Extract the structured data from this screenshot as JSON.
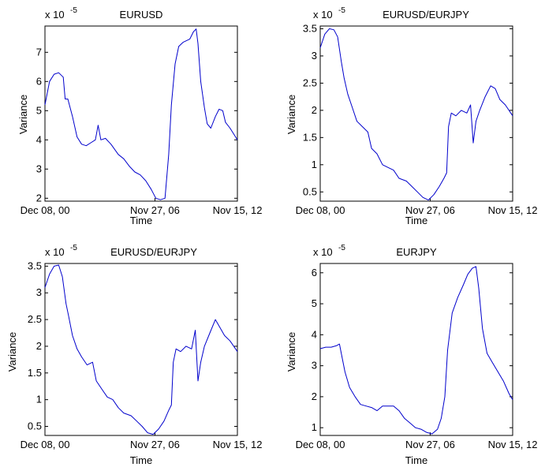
{
  "chart_data": [
    {
      "type": "line",
      "title": "EURUSD",
      "ylabel": "Variance",
      "xlabel": "Time",
      "exponent_label": "x 10",
      "exponent_power": "-5",
      "x_tick_labels": [
        "Dec 08, 00",
        "Nov 27, 06",
        "Nov 15, 12"
      ],
      "x": [
        0,
        6,
        12
      ],
      "ylim": [
        1.9,
        7.9
      ],
      "yticks": [
        2,
        3,
        4,
        5,
        6,
        7
      ],
      "series": [
        {
          "color": "#0000cc",
          "points": [
            [
              0.0,
              5.2
            ],
            [
              0.25,
              6.0
            ],
            [
              0.5,
              6.25
            ],
            [
              0.75,
              6.3
            ],
            [
              1.0,
              6.15
            ],
            [
              1.1,
              5.4
            ],
            [
              1.25,
              5.4
            ],
            [
              1.5,
              4.8
            ],
            [
              1.75,
              4.1
            ],
            [
              2.0,
              3.85
            ],
            [
              2.25,
              3.8
            ],
            [
              2.5,
              3.9
            ],
            [
              2.75,
              4.0
            ],
            [
              2.9,
              4.5
            ],
            [
              3.05,
              4.0
            ],
            [
              3.3,
              4.05
            ],
            [
              3.6,
              3.85
            ],
            [
              4.0,
              3.5
            ],
            [
              4.3,
              3.35
            ],
            [
              4.6,
              3.1
            ],
            [
              4.9,
              2.9
            ],
            [
              5.2,
              2.8
            ],
            [
              5.5,
              2.6
            ],
            [
              5.8,
              2.3
            ],
            [
              6.05,
              2.0
            ],
            [
              6.3,
              1.95
            ],
            [
              6.55,
              2.0
            ],
            [
              6.75,
              3.5
            ],
            [
              6.9,
              5.2
            ],
            [
              7.1,
              6.6
            ],
            [
              7.3,
              7.2
            ],
            [
              7.55,
              7.35
            ],
            [
              7.9,
              7.45
            ],
            [
              8.1,
              7.7
            ],
            [
              8.25,
              7.8
            ],
            [
              8.35,
              7.3
            ],
            [
              8.5,
              6.0
            ],
            [
              8.7,
              5.1
            ],
            [
              8.85,
              4.55
            ],
            [
              9.05,
              4.4
            ],
            [
              9.3,
              4.8
            ],
            [
              9.5,
              5.05
            ],
            [
              9.7,
              5.0
            ],
            [
              9.85,
              4.6
            ],
            [
              10.1,
              4.4
            ],
            [
              10.4,
              4.1
            ],
            [
              10.5,
              4.0
            ]
          ]
        }
      ]
    },
    {
      "type": "line",
      "title": "EURUSD/EURJPY",
      "ylabel": "Variance",
      "xlabel": "Time",
      "exponent_label": "x 10",
      "exponent_power": "-5",
      "x_tick_labels": [
        "Dec 08, 00",
        "Nov 27, 06",
        "Nov 15, 12"
      ],
      "x": [
        0,
        6,
        12
      ],
      "ylim": [
        0.33,
        3.55
      ],
      "yticks": [
        0.5,
        1,
        1.5,
        2,
        2.5,
        3,
        3.5
      ],
      "series": [
        {
          "color": "#0000cc",
          "points": [
            [
              0.0,
              3.15
            ],
            [
              0.25,
              3.4
            ],
            [
              0.5,
              3.5
            ],
            [
              0.75,
              3.48
            ],
            [
              0.95,
              3.35
            ],
            [
              1.15,
              2.9
            ],
            [
              1.3,
              2.6
            ],
            [
              1.5,
              2.3
            ],
            [
              1.75,
              2.05
            ],
            [
              2.0,
              1.8
            ],
            [
              2.3,
              1.7
            ],
            [
              2.6,
              1.6
            ],
            [
              2.8,
              1.3
            ],
            [
              3.1,
              1.2
            ],
            [
              3.4,
              1.0
            ],
            [
              3.7,
              0.95
            ],
            [
              4.0,
              0.9
            ],
            [
              4.3,
              0.75
            ],
            [
              4.7,
              0.7
            ],
            [
              5.0,
              0.6
            ],
            [
              5.3,
              0.5
            ],
            [
              5.6,
              0.4
            ],
            [
              5.9,
              0.35
            ],
            [
              6.2,
              0.45
            ],
            [
              6.5,
              0.6
            ],
            [
              6.75,
              0.75
            ],
            [
              6.9,
              0.85
            ],
            [
              7.0,
              1.7
            ],
            [
              7.15,
              1.95
            ],
            [
              7.4,
              1.9
            ],
            [
              7.7,
              2.0
            ],
            [
              8.0,
              1.95
            ],
            [
              8.2,
              2.1
            ],
            [
              8.35,
              1.4
            ],
            [
              8.5,
              1.8
            ],
            [
              8.7,
              2.0
            ],
            [
              9.0,
              2.25
            ],
            [
              9.3,
              2.45
            ],
            [
              9.55,
              2.4
            ],
            [
              9.8,
              2.2
            ],
            [
              10.1,
              2.1
            ],
            [
              10.5,
              1.9
            ]
          ]
        }
      ]
    },
    {
      "type": "line",
      "title": "EURUSD/EURJPY",
      "ylabel": "Variance",
      "xlabel": "Time",
      "exponent_label": "x 10",
      "exponent_power": "-5",
      "x_tick_labels": [
        "Dec 08, 00",
        "Nov 27, 06",
        "Nov 15, 12"
      ],
      "x": [
        0,
        6,
        12
      ],
      "ylim": [
        0.33,
        3.55
      ],
      "yticks": [
        0.5,
        1,
        1.5,
        2,
        2.5,
        3,
        3.5
      ],
      "series": [
        {
          "color": "#0000cc",
          "points": [
            [
              0.0,
              3.1
            ],
            [
              0.25,
              3.35
            ],
            [
              0.5,
              3.5
            ],
            [
              0.75,
              3.52
            ],
            [
              0.95,
              3.3
            ],
            [
              1.15,
              2.8
            ],
            [
              1.3,
              2.55
            ],
            [
              1.5,
              2.2
            ],
            [
              1.75,
              1.95
            ],
            [
              2.0,
              1.8
            ],
            [
              2.3,
              1.65
            ],
            [
              2.6,
              1.7
            ],
            [
              2.8,
              1.35
            ],
            [
              3.1,
              1.2
            ],
            [
              3.4,
              1.05
            ],
            [
              3.7,
              1.0
            ],
            [
              4.0,
              0.85
            ],
            [
              4.3,
              0.75
            ],
            [
              4.7,
              0.7
            ],
            [
              5.0,
              0.6
            ],
            [
              5.3,
              0.5
            ],
            [
              5.6,
              0.38
            ],
            [
              5.9,
              0.35
            ],
            [
              6.2,
              0.45
            ],
            [
              6.5,
              0.6
            ],
            [
              6.75,
              0.8
            ],
            [
              6.9,
              0.9
            ],
            [
              7.0,
              1.7
            ],
            [
              7.15,
              1.95
            ],
            [
              7.4,
              1.9
            ],
            [
              7.7,
              2.0
            ],
            [
              8.0,
              1.95
            ],
            [
              8.2,
              2.3
            ],
            [
              8.35,
              1.35
            ],
            [
              8.5,
              1.7
            ],
            [
              8.7,
              2.0
            ],
            [
              9.0,
              2.25
            ],
            [
              9.3,
              2.5
            ],
            [
              9.55,
              2.35
            ],
            [
              9.8,
              2.2
            ],
            [
              10.1,
              2.1
            ],
            [
              10.5,
              1.9
            ]
          ]
        }
      ]
    },
    {
      "type": "line",
      "title": "EURJPY",
      "ylabel": "Variance",
      "xlabel": "Time",
      "exponent_label": "x 10",
      "exponent_power": "-5",
      "x_tick_labels": [
        "Dec 08, 00",
        "Nov 27, 06",
        "Nov 15, 12"
      ],
      "x": [
        0,
        6,
        12
      ],
      "ylim": [
        0.75,
        6.3
      ],
      "yticks": [
        1,
        2,
        3,
        4,
        5,
        6
      ],
      "series": [
        {
          "color": "#0000cc",
          "points": [
            [
              0.0,
              3.55
            ],
            [
              0.3,
              3.6
            ],
            [
              0.6,
              3.6
            ],
            [
              0.9,
              3.65
            ],
            [
              1.05,
              3.7
            ],
            [
              1.15,
              3.4
            ],
            [
              1.35,
              2.8
            ],
            [
              1.6,
              2.3
            ],
            [
              1.9,
              2.0
            ],
            [
              2.2,
              1.75
            ],
            [
              2.5,
              1.7
            ],
            [
              2.8,
              1.65
            ],
            [
              3.1,
              1.55
            ],
            [
              3.4,
              1.7
            ],
            [
              3.7,
              1.7
            ],
            [
              4.0,
              1.7
            ],
            [
              4.3,
              1.55
            ],
            [
              4.6,
              1.3
            ],
            [
              4.9,
              1.15
            ],
            [
              5.2,
              1.0
            ],
            [
              5.5,
              0.95
            ],
            [
              5.8,
              0.85
            ],
            [
              6.1,
              0.8
            ],
            [
              6.4,
              0.95
            ],
            [
              6.6,
              1.3
            ],
            [
              6.8,
              2.0
            ],
            [
              6.95,
              3.5
            ],
            [
              7.2,
              4.7
            ],
            [
              7.5,
              5.2
            ],
            [
              7.8,
              5.6
            ],
            [
              8.05,
              5.95
            ],
            [
              8.3,
              6.15
            ],
            [
              8.5,
              6.2
            ],
            [
              8.65,
              5.5
            ],
            [
              8.85,
              4.2
            ],
            [
              9.1,
              3.4
            ],
            [
              9.4,
              3.1
            ],
            [
              9.7,
              2.8
            ],
            [
              10.0,
              2.5
            ],
            [
              10.3,
              2.1
            ],
            [
              10.5,
              1.9
            ]
          ]
        }
      ]
    }
  ]
}
